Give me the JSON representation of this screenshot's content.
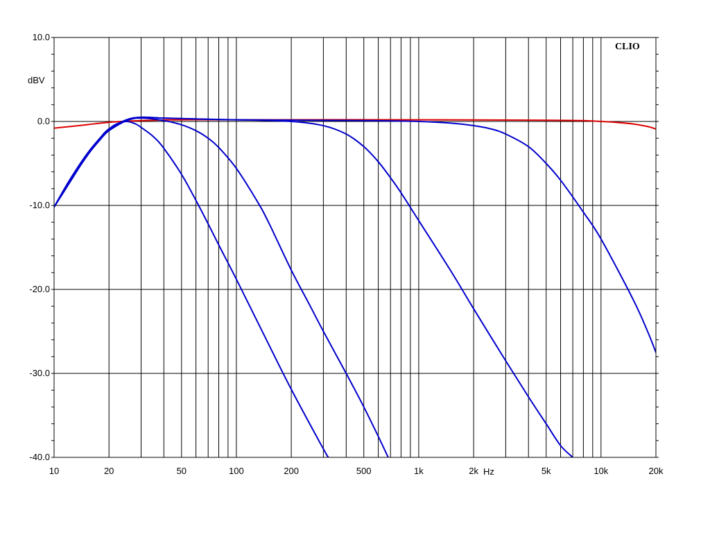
{
  "chart_data": {
    "type": "line",
    "brand_label": "CLIO",
    "ylabel": "dBV",
    "xunit": "Hz",
    "xscale": "log",
    "xlim": [
      10,
      20000
    ],
    "ylim": [
      -40,
      10
    ],
    "grid": true,
    "y_ticks": [
      {
        "value": 10,
        "label": "10.0"
      },
      {
        "value": 0,
        "label": "0.0"
      },
      {
        "value": -10,
        "label": "-10.0"
      },
      {
        "value": -20,
        "label": "-20.0"
      },
      {
        "value": -30,
        "label": "-30.0"
      },
      {
        "value": -40,
        "label": "-40.0"
      }
    ],
    "x_ticks": [
      {
        "value": 10,
        "label": "10"
      },
      {
        "value": 20,
        "label": "20"
      },
      {
        "value": 50,
        "label": "50"
      },
      {
        "value": 100,
        "label": "100"
      },
      {
        "value": 200,
        "label": "200"
      },
      {
        "value": 500,
        "label": "500"
      },
      {
        "value": 1000,
        "label": "1k"
      },
      {
        "value": 2000,
        "label": "2k"
      },
      {
        "value": 5000,
        "label": "5k"
      },
      {
        "value": 10000,
        "label": "10k"
      },
      {
        "value": 20000,
        "label": "20k"
      }
    ],
    "series": [
      {
        "color": "#dd0000",
        "points": [
          [
            10,
            -0.8
          ],
          [
            15,
            -0.4
          ],
          [
            20,
            -0.1
          ],
          [
            30,
            0.1
          ],
          [
            50,
            0.2
          ],
          [
            100,
            0.2
          ],
          [
            1000,
            0.2
          ],
          [
            5000,
            0.15
          ],
          [
            8000,
            0.1
          ],
          [
            10000,
            0
          ],
          [
            12000,
            -0.1
          ],
          [
            15000,
            -0.3
          ],
          [
            18000,
            -0.6
          ],
          [
            20000,
            -0.9
          ]
        ]
      },
      {
        "color": "#0000cc",
        "points": [
          [
            10,
            -10.2
          ],
          [
            12,
            -7.5
          ],
          [
            14,
            -5.2
          ],
          [
            16,
            -3.4
          ],
          [
            18,
            -1.9
          ],
          [
            20,
            -0.9
          ],
          [
            22,
            -0.3
          ],
          [
            25,
            0.0
          ],
          [
            28,
            -0.3
          ],
          [
            30,
            -0.7
          ],
          [
            35,
            -1.8
          ],
          [
            40,
            -3.2
          ],
          [
            50,
            -6.3
          ],
          [
            60,
            -9.4
          ],
          [
            70,
            -12.2
          ],
          [
            80,
            -14.7
          ],
          [
            100,
            -18.8
          ],
          [
            150,
            -26.5
          ],
          [
            200,
            -31.9
          ],
          [
            300,
            -39.0
          ],
          [
            320,
            -40.0
          ]
        ]
      },
      {
        "color": "#0000cc",
        "points": [
          [
            10,
            -10.2
          ],
          [
            12,
            -7.3
          ],
          [
            15,
            -4.2
          ],
          [
            18,
            -2.1
          ],
          [
            20,
            -1.1
          ],
          [
            25,
            0.1
          ],
          [
            30,
            0.4
          ],
          [
            40,
            0.1
          ],
          [
            50,
            -0.4
          ],
          [
            60,
            -1.1
          ],
          [
            70,
            -2.0
          ],
          [
            80,
            -3.1
          ],
          [
            100,
            -5.6
          ],
          [
            130,
            -9.5
          ],
          [
            150,
            -12.0
          ],
          [
            200,
            -17.7
          ],
          [
            250,
            -21.7
          ],
          [
            300,
            -25.0
          ],
          [
            400,
            -30.0
          ],
          [
            500,
            -34.0
          ],
          [
            600,
            -37.5
          ],
          [
            680,
            -40.0
          ]
        ]
      },
      {
        "color": "#0000cc",
        "points": [
          [
            10,
            -10.2
          ],
          [
            12,
            -7.2
          ],
          [
            15,
            -4.0
          ],
          [
            18,
            -1.9
          ],
          [
            20,
            -0.9
          ],
          [
            25,
            0.2
          ],
          [
            30,
            0.5
          ],
          [
            40,
            0.4
          ],
          [
            60,
            0.3
          ],
          [
            100,
            0.2
          ],
          [
            200,
            0.0
          ],
          [
            300,
            -0.5
          ],
          [
            400,
            -1.5
          ],
          [
            500,
            -3.0
          ],
          [
            600,
            -4.8
          ],
          [
            700,
            -6.7
          ],
          [
            800,
            -8.5
          ],
          [
            1000,
            -11.8
          ],
          [
            1500,
            -17.8
          ],
          [
            2000,
            -22.3
          ],
          [
            3000,
            -28.5
          ],
          [
            4000,
            -32.8
          ],
          [
            5000,
            -36.0
          ],
          [
            6000,
            -38.6
          ],
          [
            7000,
            -40.0
          ]
        ]
      },
      {
        "color": "#0000cc",
        "points": [
          [
            10,
            -10.2
          ],
          [
            12,
            -7.2
          ],
          [
            15,
            -4.0
          ],
          [
            18,
            -1.9
          ],
          [
            20,
            -0.9
          ],
          [
            25,
            0.2
          ],
          [
            30,
            0.5
          ],
          [
            40,
            0.4
          ],
          [
            60,
            0.3
          ],
          [
            100,
            0.2
          ],
          [
            500,
            0.1
          ],
          [
            1000,
            0.0
          ],
          [
            1500,
            -0.2
          ],
          [
            2000,
            -0.5
          ],
          [
            2500,
            -0.9
          ],
          [
            3000,
            -1.5
          ],
          [
            4000,
            -3.0
          ],
          [
            5000,
            -5.0
          ],
          [
            6000,
            -7.0
          ],
          [
            8000,
            -10.8
          ],
          [
            10000,
            -14.0
          ],
          [
            15000,
            -21.2
          ],
          [
            18000,
            -25.0
          ],
          [
            20000,
            -27.5
          ],
          [
            20100,
            -27.6
          ]
        ]
      }
    ]
  }
}
